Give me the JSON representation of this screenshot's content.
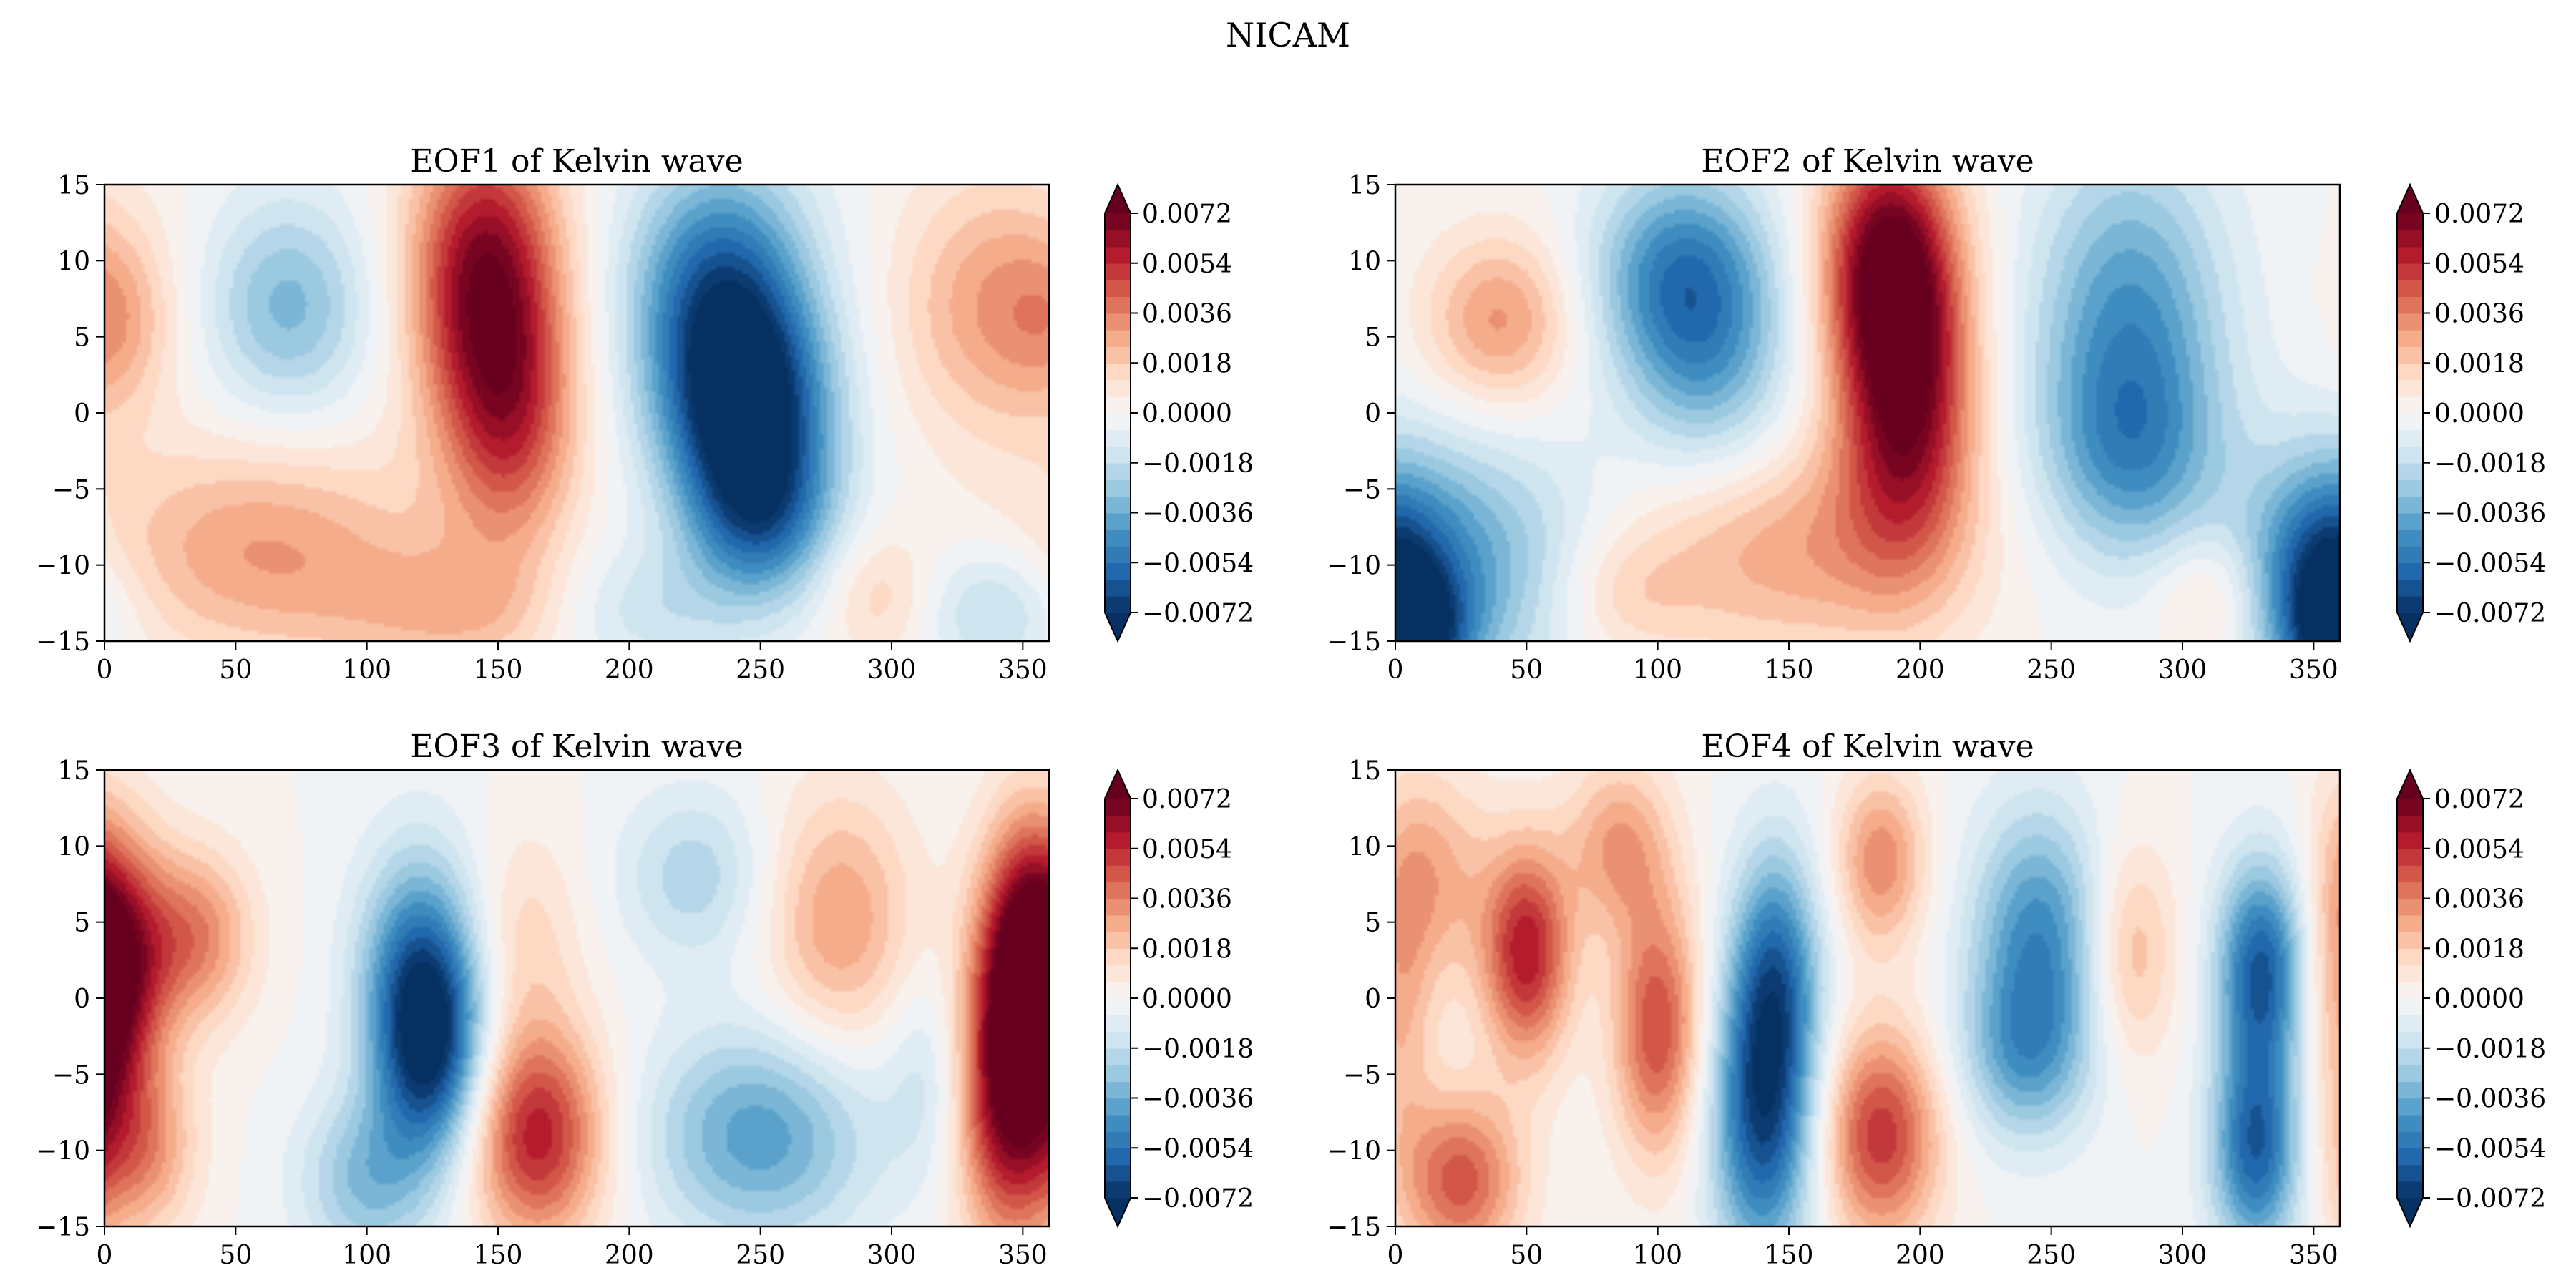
{
  "figure": {
    "title": "NICAM"
  },
  "chart_data": [
    {
      "type": "heatmap",
      "title": "EOF1 of Kelvin wave",
      "xlabel": "",
      "ylabel": "",
      "xlim": [
        0,
        360
      ],
      "ylim": [
        -15,
        15
      ],
      "xticks": [
        0,
        50,
        100,
        150,
        200,
        250,
        300,
        350
      ],
      "yticks": [
        -15,
        -10,
        -5,
        0,
        5,
        10,
        15
      ],
      "colormap": "RdBu_r",
      "colorbar": {
        "vmin": -0.0072,
        "vmax": 0.0072,
        "extend": "both",
        "ticks": [
          0.0072,
          0.0054,
          0.0036,
          0.0018,
          0.0,
          -0.0018,
          -0.0036,
          -0.0054,
          -0.0072
        ],
        "tick_labels": [
          "0.0072",
          "0.0054",
          "0.0036",
          "0.0018",
          "0.0000",
          "−0.0018",
          "−0.0036",
          "−0.0054",
          "−0.0072"
        ]
      },
      "features": [
        {
          "x": 70,
          "y": 7,
          "value": -0.0032,
          "sx": 22,
          "sy": 5
        },
        {
          "x": 145,
          "y": 9,
          "value": 0.0068,
          "sx": 20,
          "sy": 7
        },
        {
          "x": 155,
          "y": -1,
          "value": 0.004,
          "sx": 18,
          "sy": 6
        },
        {
          "x": 235,
          "y": 8,
          "value": -0.0058,
          "sx": 24,
          "sy": 6
        },
        {
          "x": 245,
          "y": 0,
          "value": -0.007,
          "sx": 22,
          "sy": 5
        },
        {
          "x": 250,
          "y": -7,
          "value": -0.0045,
          "sx": 20,
          "sy": 4
        },
        {
          "x": 340,
          "y": 7,
          "value": 0.003,
          "sx": 26,
          "sy": 6
        },
        {
          "x": 60,
          "y": -9,
          "value": 0.003,
          "sx": 45,
          "sy": 5
        },
        {
          "x": 140,
          "y": -13,
          "value": 0.0022,
          "sx": 35,
          "sy": 3
        },
        {
          "x": 5,
          "y": 6,
          "value": 0.0015,
          "sx": 15,
          "sy": 4
        },
        {
          "x": 200,
          "y": -13,
          "value": -0.0018,
          "sx": 30,
          "sy": 3
        },
        {
          "x": 340,
          "y": -13,
          "value": -0.0022,
          "sx": 20,
          "sy": 3
        },
        {
          "x": 295,
          "y": -12,
          "value": 0.0016,
          "sx": 15,
          "sy": 3
        }
      ]
    },
    {
      "type": "heatmap",
      "title": "EOF2 of Kelvin wave",
      "xlabel": "",
      "ylabel": "",
      "xlim": [
        0,
        360
      ],
      "ylim": [
        -15,
        15
      ],
      "xticks": [
        0,
        50,
        100,
        150,
        200,
        250,
        300,
        350
      ],
      "yticks": [
        -15,
        -10,
        -5,
        0,
        5,
        10,
        15
      ],
      "colormap": "RdBu_r",
      "colorbar": {
        "vmin": -0.0072,
        "vmax": 0.0072,
        "extend": "both",
        "ticks": [
          0.0072,
          0.0054,
          0.0036,
          0.0018,
          0.0,
          -0.0018,
          -0.0036,
          -0.0054,
          -0.0072
        ],
        "tick_labels": [
          "0.0072",
          "0.0054",
          "0.0036",
          "0.0018",
          "0.0000",
          "−0.0018",
          "−0.0036",
          "−0.0054",
          "−0.0072"
        ]
      },
      "features": [
        {
          "x": 40,
          "y": 6,
          "value": 0.0032,
          "sx": 20,
          "sy": 4
        },
        {
          "x": 110,
          "y": 9,
          "value": -0.005,
          "sx": 24,
          "sy": 5
        },
        {
          "x": 120,
          "y": 2,
          "value": -0.0025,
          "sx": 22,
          "sy": 5
        },
        {
          "x": 188,
          "y": 10,
          "value": 0.007,
          "sx": 18,
          "sy": 6
        },
        {
          "x": 195,
          "y": 0,
          "value": 0.0062,
          "sx": 18,
          "sy": 7
        },
        {
          "x": 280,
          "y": 6,
          "value": -0.0042,
          "sx": 26,
          "sy": 8
        },
        {
          "x": 280,
          "y": -3,
          "value": -0.0028,
          "sx": 24,
          "sy": 5
        },
        {
          "x": 20,
          "y": -10,
          "value": -0.0038,
          "sx": 40,
          "sy": 6
        },
        {
          "x": 5,
          "y": -15,
          "value": -0.0055,
          "sx": 15,
          "sy": 3
        },
        {
          "x": 150,
          "y": -9,
          "value": 0.0028,
          "sx": 45,
          "sy": 5
        },
        {
          "x": 355,
          "y": -11,
          "value": -0.0045,
          "sx": 18,
          "sy": 5
        },
        {
          "x": 310,
          "y": -12,
          "value": 0.0018,
          "sx": 15,
          "sy": 3
        },
        {
          "x": 85,
          "y": -12,
          "value": 0.0015,
          "sx": 20,
          "sy": 3
        }
      ]
    },
    {
      "type": "heatmap",
      "title": "EOF3 of Kelvin wave",
      "xlabel": "",
      "ylabel": "",
      "xlim": [
        0,
        360
      ],
      "ylim": [
        -15,
        15
      ],
      "xticks": [
        0,
        50,
        100,
        150,
        200,
        250,
        300,
        350
      ],
      "yticks": [
        -15,
        -10,
        -5,
        0,
        5,
        10,
        15
      ],
      "colormap": "RdBu_r",
      "colorbar": {
        "vmin": -0.0072,
        "vmax": 0.0072,
        "extend": "both",
        "ticks": [
          0.0072,
          0.0054,
          0.0036,
          0.0018,
          0.0,
          -0.0018,
          -0.0036,
          -0.0054,
          -0.0072
        ],
        "tick_labels": [
          "0.0072",
          "0.0054",
          "0.0036",
          "0.0018",
          "0.0000",
          "−0.0018",
          "−0.0036",
          "−0.0054",
          "−0.0072"
        ]
      },
      "features": [
        {
          "x": 5,
          "y": 2,
          "value": 0.006,
          "sx": 14,
          "sy": 6
        },
        {
          "x": 35,
          "y": 4,
          "value": 0.0035,
          "sx": 15,
          "sy": 4
        },
        {
          "x": 15,
          "y": -10,
          "value": 0.003,
          "sx": 14,
          "sy": 4
        },
        {
          "x": 120,
          "y": 1,
          "value": -0.0055,
          "sx": 16,
          "sy": 6
        },
        {
          "x": 125,
          "y": -4,
          "value": -0.0045,
          "sx": 14,
          "sy": 5
        },
        {
          "x": 100,
          "y": -12,
          "value": -0.003,
          "sx": 18,
          "sy": 4
        },
        {
          "x": 165,
          "y": -9,
          "value": 0.0058,
          "sx": 18,
          "sy": 5
        },
        {
          "x": 160,
          "y": 4,
          "value": 0.0015,
          "sx": 15,
          "sy": 5
        },
        {
          "x": 250,
          "y": -9,
          "value": -0.004,
          "sx": 30,
          "sy": 5
        },
        {
          "x": 225,
          "y": 8,
          "value": -0.0022,
          "sx": 20,
          "sy": 4
        },
        {
          "x": 280,
          "y": 5,
          "value": 0.003,
          "sx": 20,
          "sy": 6
        },
        {
          "x": 345,
          "y": -6,
          "value": 0.0072,
          "sx": 14,
          "sy": 7
        },
        {
          "x": 350,
          "y": 4,
          "value": 0.0045,
          "sx": 12,
          "sy": 6
        },
        {
          "x": 315,
          "y": -5,
          "value": -0.0015,
          "sx": 12,
          "sy": 5
        }
      ]
    },
    {
      "type": "heatmap",
      "title": "EOF4 of Kelvin wave",
      "xlabel": "",
      "ylabel": "",
      "xlim": [
        0,
        360
      ],
      "ylim": [
        -15,
        15
      ],
      "xticks": [
        0,
        50,
        100,
        150,
        200,
        250,
        300,
        350
      ],
      "yticks": [
        -15,
        -10,
        -5,
        0,
        5,
        10,
        15
      ],
      "colormap": "RdBu_r",
      "colorbar": {
        "vmin": -0.0072,
        "vmax": 0.0072,
        "extend": "both",
        "ticks": [
          0.0072,
          0.0054,
          0.0036,
          0.0018,
          0.0,
          -0.0018,
          -0.0036,
          -0.0054,
          -0.0072
        ],
        "tick_labels": [
          "0.0072",
          "0.0054",
          "0.0036",
          "0.0018",
          "0.0000",
          "−0.0018",
          "−0.0036",
          "−0.0054",
          "−0.0072"
        ]
      },
      "features": [
        {
          "x": 50,
          "y": 3,
          "value": 0.0058,
          "sx": 12,
          "sy": 5
        },
        {
          "x": 25,
          "y": -12,
          "value": 0.0045,
          "sx": 16,
          "sy": 4
        },
        {
          "x": 15,
          "y": 8,
          "value": 0.0025,
          "sx": 15,
          "sy": 5
        },
        {
          "x": 100,
          "y": -2,
          "value": 0.0048,
          "sx": 12,
          "sy": 6
        },
        {
          "x": 85,
          "y": 10,
          "value": 0.003,
          "sx": 14,
          "sy": 4
        },
        {
          "x": 140,
          "y": -8,
          "value": -0.0062,
          "sx": 14,
          "sy": 7
        },
        {
          "x": 145,
          "y": 2,
          "value": -0.0045,
          "sx": 12,
          "sy": 6
        },
        {
          "x": 185,
          "y": -9,
          "value": 0.0052,
          "sx": 16,
          "sy": 5
        },
        {
          "x": 185,
          "y": 9,
          "value": 0.0035,
          "sx": 12,
          "sy": 4
        },
        {
          "x": 245,
          "y": 4,
          "value": -0.0045,
          "sx": 18,
          "sy": 6
        },
        {
          "x": 240,
          "y": -4,
          "value": -0.003,
          "sx": 18,
          "sy": 4
        },
        {
          "x": 280,
          "y": 3,
          "value": 0.0025,
          "sx": 12,
          "sy": 5
        },
        {
          "x": 330,
          "y": 2,
          "value": -0.006,
          "sx": 12,
          "sy": 5
        },
        {
          "x": 328,
          "y": -10,
          "value": -0.0058,
          "sx": 12,
          "sy": 5
        },
        {
          "x": 360,
          "y": 0,
          "value": 0.0025,
          "sx": 10,
          "sy": 8
        }
      ]
    }
  ]
}
